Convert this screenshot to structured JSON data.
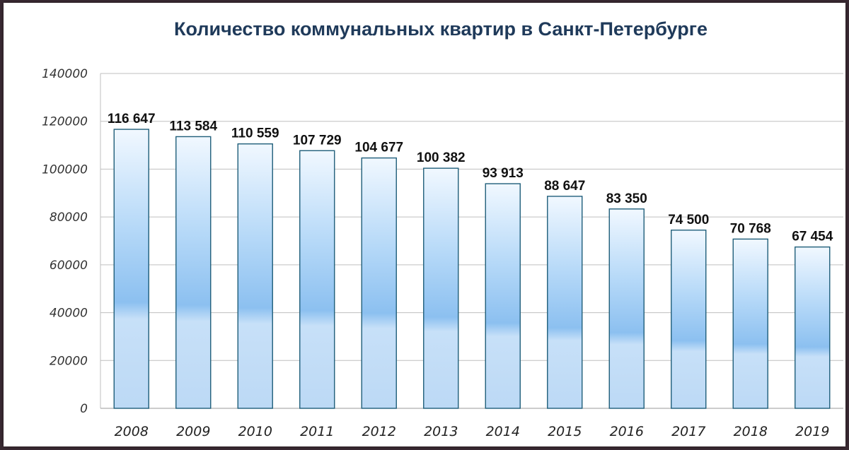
{
  "chart_data": {
    "type": "bar",
    "title": "Количество коммунальных квартир в Санкт-Петербурге",
    "xlabel": "",
    "ylabel": "",
    "categories": [
      "2008",
      "2009",
      "2010",
      "2011",
      "2012",
      "2013",
      "2014",
      "2015",
      "2016",
      "2017",
      "2018",
      "2019"
    ],
    "values": [
      116647,
      113584,
      110559,
      107729,
      104677,
      100382,
      93913,
      88647,
      83350,
      74500,
      70768,
      67454
    ],
    "value_labels": [
      "116 647",
      "113 584",
      "110 559",
      "107 729",
      "104 677",
      "100 382",
      "93 913",
      "88 647",
      "83 350",
      "74 500",
      "70 768",
      "67 454"
    ],
    "ylim": [
      0,
      140000
    ],
    "yticks": [
      "0",
      "20000",
      "40000",
      "60000",
      "80000",
      "100000",
      "120000",
      "140000"
    ],
    "grid": true,
    "legend": "none",
    "colors": {
      "bar_light": "#eef6ff",
      "bar_mid": "#8fc2f2",
      "bar_border": "#1f5e7a",
      "grid": "#bfbfbf",
      "title": "#1f3a5a"
    }
  }
}
